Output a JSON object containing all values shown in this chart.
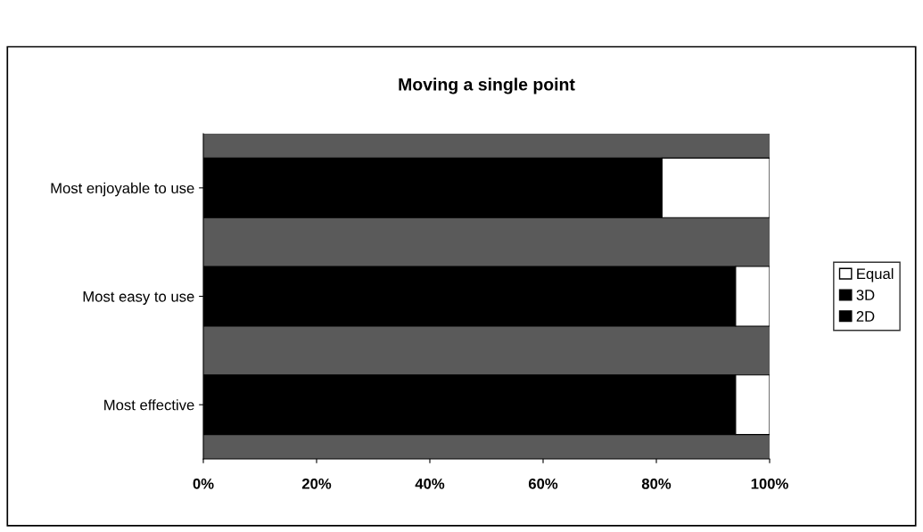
{
  "chart_data": {
    "type": "bar",
    "orientation": "horizontal",
    "stacked": true,
    "title": "Moving a single point",
    "categories": [
      "Most enjoyable to use",
      "Most easy to use",
      "Most effective"
    ],
    "series": [
      {
        "name": "2D",
        "color": "#000000",
        "values": [
          0,
          0,
          0
        ]
      },
      {
        "name": "3D",
        "color": "#000000",
        "values": [
          81,
          94,
          94
        ]
      },
      {
        "name": "Equal",
        "color": "#ffffff",
        "values": [
          19,
          6,
          6
        ]
      }
    ],
    "xlim": [
      0,
      100
    ],
    "xticks": [
      {
        "value": 0,
        "label": "0%"
      },
      {
        "value": 20,
        "label": "20%"
      },
      {
        "value": 40,
        "label": "40%"
      },
      {
        "value": 60,
        "label": "60%"
      },
      {
        "value": 80,
        "label": "80%"
      },
      {
        "value": 100,
        "label": "100%"
      }
    ],
    "grid": false,
    "legend": "right"
  }
}
